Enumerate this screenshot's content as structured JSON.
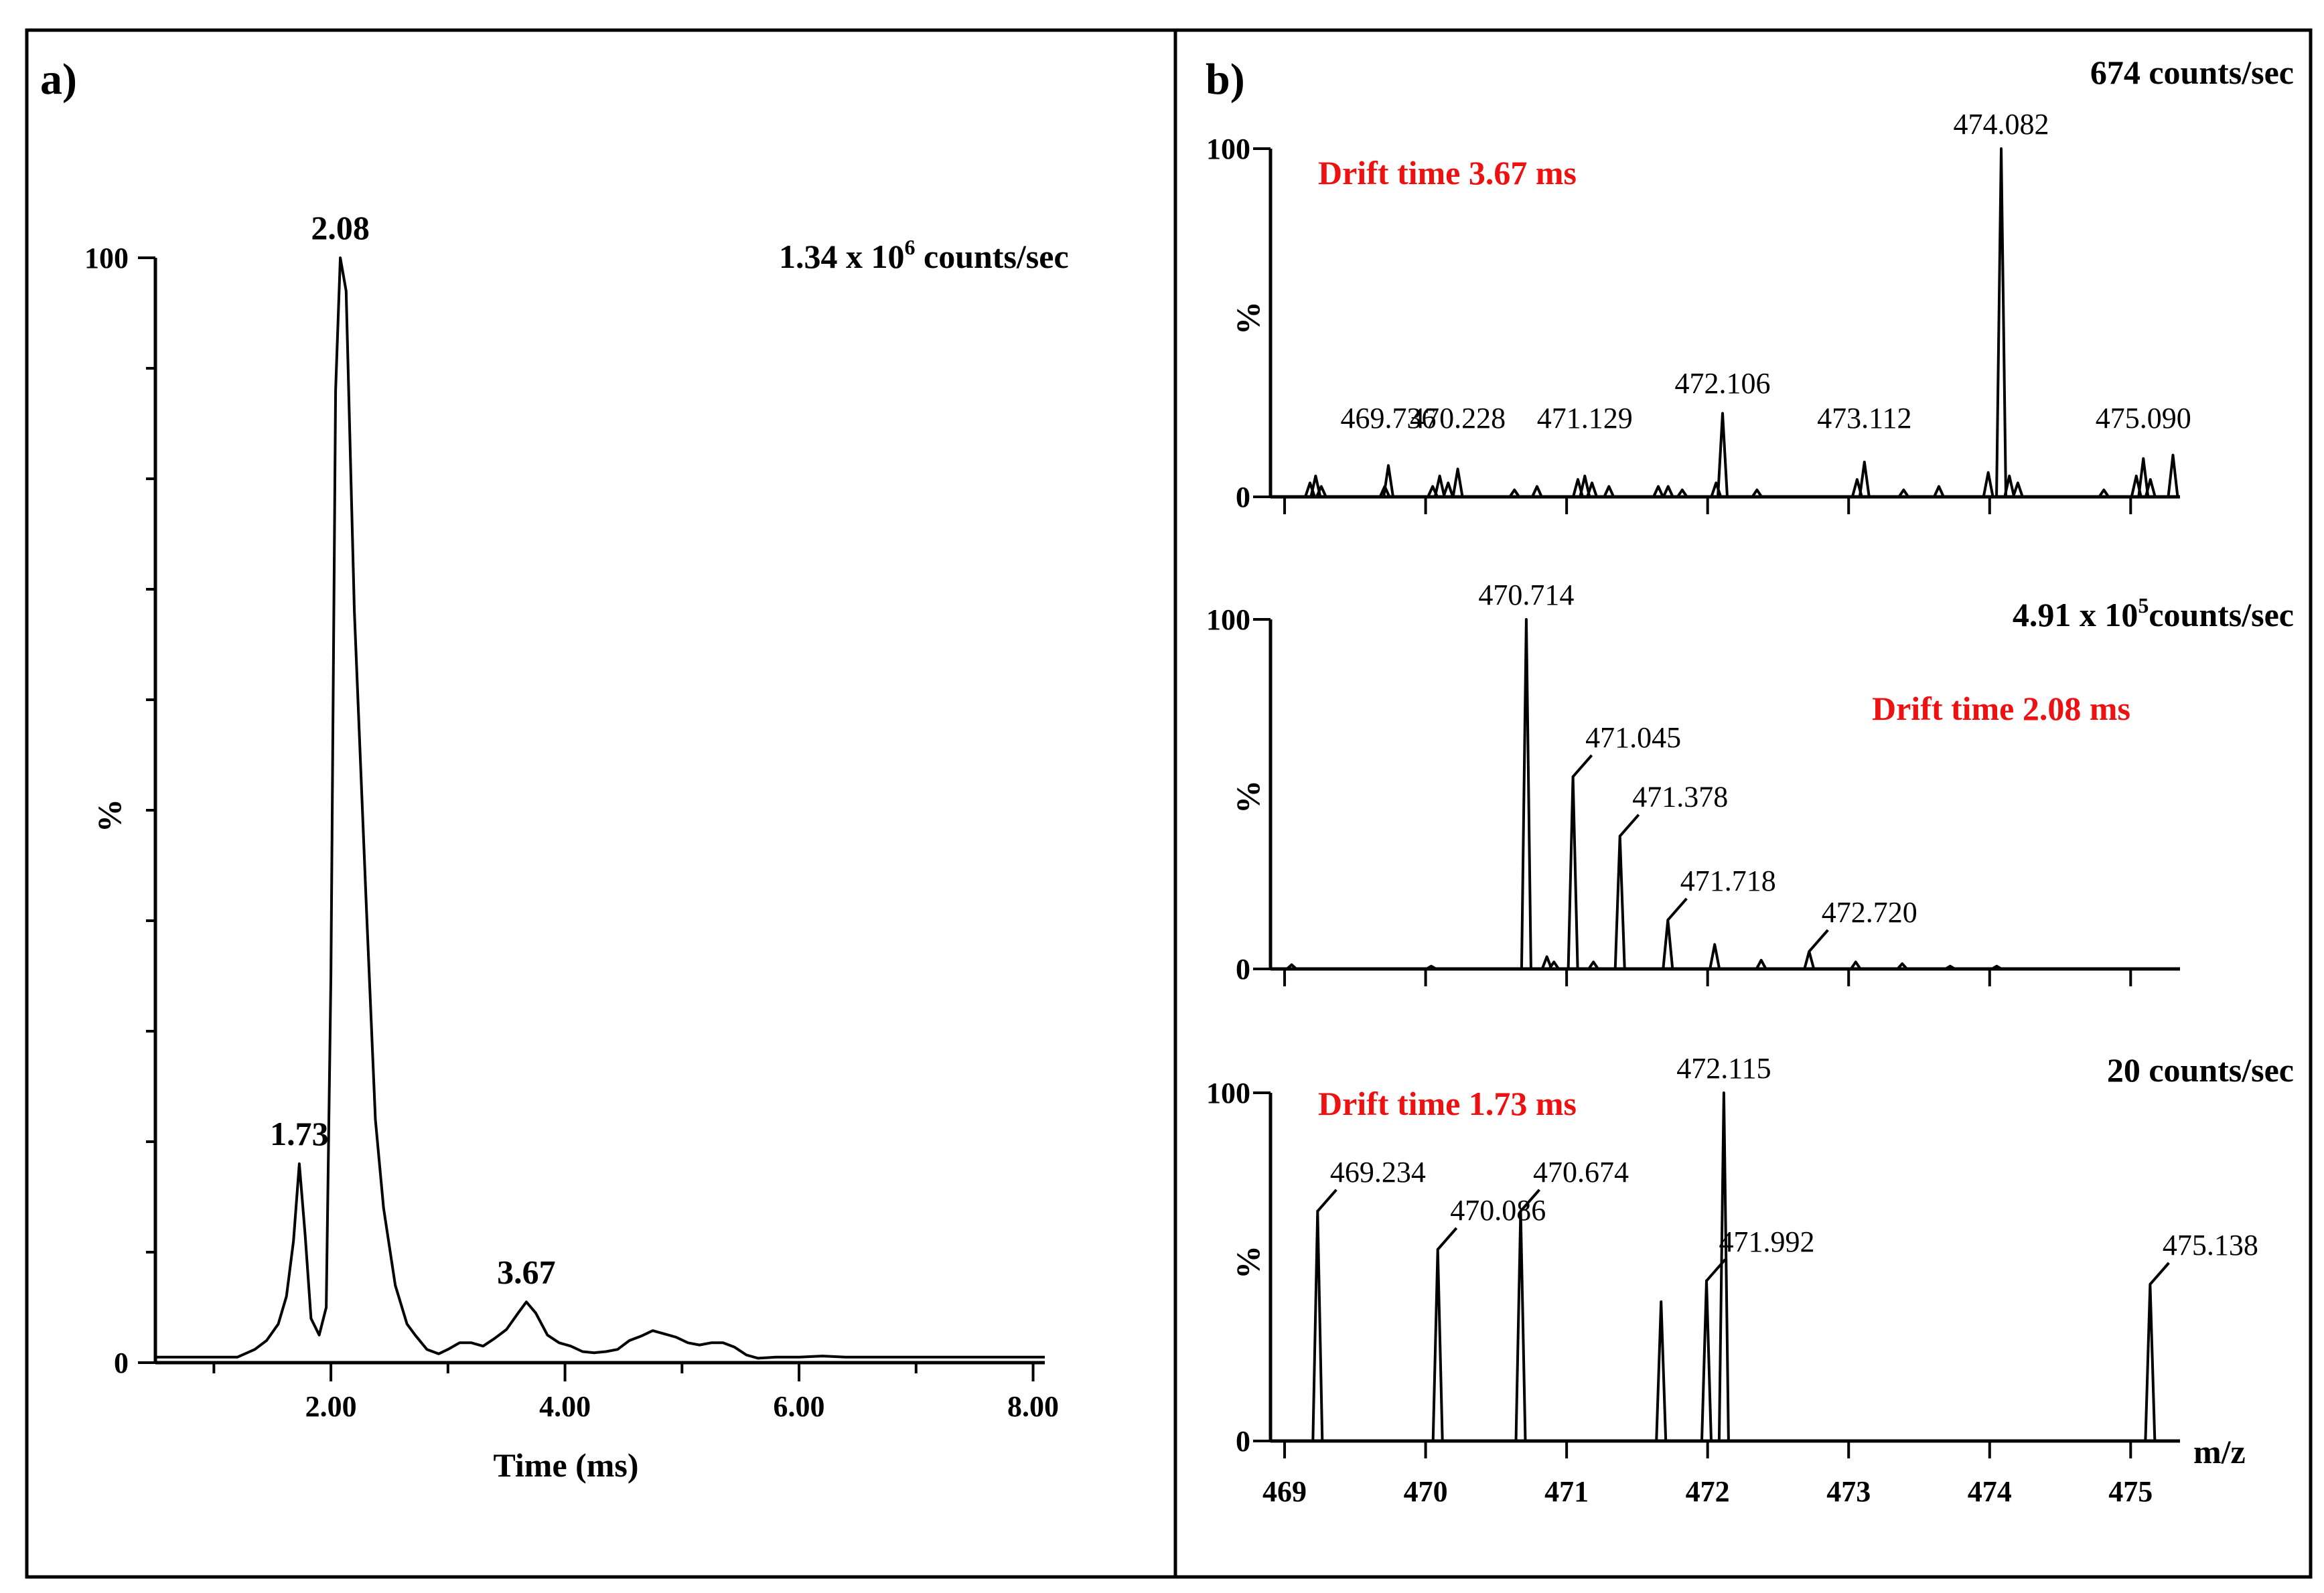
{
  "panel_labels": {
    "a": "a)",
    "b": "b)"
  },
  "chart_data": [
    {
      "type": "line",
      "panel": "a)",
      "intensity_label": "1.34 x 10",
      "intensity_exponent": "6",
      "intensity_unit": " counts/sec",
      "xlabel": "Time (ms)",
      "ylabel": "%",
      "xlim": [
        0.5,
        8.1
      ],
      "ylim": [
        0,
        100
      ],
      "xticks": [
        1,
        2,
        3,
        4,
        5,
        6,
        7,
        8
      ],
      "xtick_labels": [
        "2.00",
        "4.00",
        "6.00",
        "8.00"
      ],
      "xtick_label_values": [
        2,
        4,
        6,
        8
      ],
      "yticks": [
        0,
        10,
        20,
        30,
        40,
        50,
        60,
        70,
        80,
        90,
        100
      ],
      "ytick_labels": [
        "0",
        "100"
      ],
      "peak_labels": [
        "1.73",
        "2.08",
        "3.67"
      ],
      "peaks": [
        {
          "x": 1.73,
          "y": 18.0
        },
        {
          "x": 2.08,
          "y": 100
        },
        {
          "x": 3.67,
          "y": 5.5
        }
      ],
      "series": [
        {
          "name": "drift time profile",
          "x": [
            0.5,
            1.2,
            1.35,
            1.45,
            1.55,
            1.62,
            1.68,
            1.73,
            1.78,
            1.83,
            1.9,
            1.96,
            2.0,
            2.04,
            2.08,
            2.13,
            2.2,
            2.3,
            2.38,
            2.45,
            2.55,
            2.65,
            2.72,
            2.82,
            2.92,
            3.0,
            3.1,
            3.2,
            3.3,
            3.4,
            3.5,
            3.6,
            3.67,
            3.75,
            3.85,
            3.95,
            4.05,
            4.15,
            4.25,
            4.35,
            4.45,
            4.55,
            4.65,
            4.75,
            4.85,
            4.95,
            5.05,
            5.15,
            5.25,
            5.35,
            5.45,
            5.55,
            5.65,
            5.8,
            6.0,
            6.2,
            6.4,
            7.0,
            8.1
          ],
          "y": [
            0.5,
            0.5,
            1.2,
            2.0,
            3.5,
            6.0,
            11.0,
            18.0,
            11.5,
            4.0,
            2.5,
            5.0,
            35.0,
            88.0,
            100,
            97.0,
            68.0,
            42.0,
            22.0,
            14.0,
            7.0,
            3.5,
            2.5,
            1.2,
            0.8,
            1.2,
            1.8,
            1.8,
            1.5,
            2.2,
            3.0,
            4.5,
            5.5,
            4.5,
            2.5,
            1.8,
            1.5,
            1.0,
            0.9,
            1.0,
            1.2,
            2.0,
            2.4,
            2.9,
            2.6,
            2.3,
            1.8,
            1.6,
            1.8,
            1.8,
            1.4,
            0.7,
            0.4,
            0.5,
            0.5,
            0.6,
            0.5,
            0.5,
            0.5
          ]
        }
      ]
    },
    {
      "type": "bar",
      "panel": "b) top",
      "intensity_label": "674 counts/sec",
      "drift_label": "Drift time 3.67 ms",
      "xlabel": "m/z",
      "ylabel": "%",
      "xlim": [
        468.9,
        475.35
      ],
      "ylim": [
        0,
        100
      ],
      "ytick_labels": [
        "0",
        "100"
      ],
      "peak_labels": [
        "469.736",
        "470.228",
        "471.129",
        "472.106",
        "473.112",
        "474.082",
        "475.090"
      ],
      "labeled_peaks": [
        {
          "mz": 469.736,
          "y": 9
        },
        {
          "mz": 470.228,
          "y": 8
        },
        {
          "mz": 471.129,
          "y": 6
        },
        {
          "mz": 472.106,
          "y": 24
        },
        {
          "mz": 473.112,
          "y": 10
        },
        {
          "mz": 474.082,
          "y": 100
        },
        {
          "mz": 475.09,
          "y": 11
        }
      ],
      "minor_peaks": [
        {
          "mz": 469.18,
          "y": 4
        },
        {
          "mz": 469.22,
          "y": 6
        },
        {
          "mz": 469.26,
          "y": 3
        },
        {
          "mz": 469.71,
          "y": 3
        },
        {
          "mz": 470.05,
          "y": 3
        },
        {
          "mz": 470.1,
          "y": 6
        },
        {
          "mz": 470.16,
          "y": 4
        },
        {
          "mz": 470.63,
          "y": 2
        },
        {
          "mz": 470.79,
          "y": 3
        },
        {
          "mz": 471.08,
          "y": 5
        },
        {
          "mz": 471.18,
          "y": 4
        },
        {
          "mz": 471.3,
          "y": 3
        },
        {
          "mz": 471.65,
          "y": 3
        },
        {
          "mz": 471.72,
          "y": 3
        },
        {
          "mz": 471.82,
          "y": 2
        },
        {
          "mz": 472.06,
          "y": 4
        },
        {
          "mz": 472.35,
          "y": 2
        },
        {
          "mz": 473.06,
          "y": 5
        },
        {
          "mz": 473.39,
          "y": 2
        },
        {
          "mz": 473.64,
          "y": 3
        },
        {
          "mz": 473.99,
          "y": 7
        },
        {
          "mz": 474.14,
          "y": 6
        },
        {
          "mz": 474.2,
          "y": 4
        },
        {
          "mz": 474.81,
          "y": 2
        },
        {
          "mz": 475.04,
          "y": 6
        },
        {
          "mz": 475.14,
          "y": 5
        },
        {
          "mz": 475.3,
          "y": 12
        }
      ]
    },
    {
      "type": "bar",
      "panel": "b) middle",
      "intensity_label": "4.91 x 10",
      "intensity_exponent": "5",
      "intensity_unit": "counts/sec",
      "drift_label": "Drift time 2.08 ms",
      "xlabel": "m/z",
      "ylabel": "%",
      "xlim": [
        468.9,
        475.35
      ],
      "ylim": [
        0,
        100
      ],
      "ytick_labels": [
        "0",
        "100"
      ],
      "peak_labels": [
        "470.714",
        "471.045",
        "471.378",
        "471.718",
        "472.720"
      ],
      "labeled_peaks": [
        {
          "mz": 470.714,
          "y": 100
        },
        {
          "mz": 471.045,
          "y": 55
        },
        {
          "mz": 471.378,
          "y": 38
        },
        {
          "mz": 471.718,
          "y": 14
        },
        {
          "mz": 472.72,
          "y": 5
        }
      ],
      "minor_peaks": [
        {
          "mz": 469.05,
          "y": 1.2
        },
        {
          "mz": 470.04,
          "y": 0.8
        },
        {
          "mz": 470.86,
          "y": 3.5
        },
        {
          "mz": 470.91,
          "y": 2
        },
        {
          "mz": 471.19,
          "y": 2
        },
        {
          "mz": 472.05,
          "y": 7
        },
        {
          "mz": 472.38,
          "y": 2.5
        },
        {
          "mz": 473.05,
          "y": 2
        },
        {
          "mz": 473.38,
          "y": 1.5
        },
        {
          "mz": 473.72,
          "y": 0.8
        },
        {
          "mz": 474.05,
          "y": 0.8
        }
      ]
    },
    {
      "type": "bar",
      "panel": "b) bottom",
      "intensity_label": "20 counts/sec",
      "drift_label": "Drift time 1.73 ms",
      "xlabel": "m/z",
      "ylabel": "%",
      "xlim": [
        468.9,
        475.35
      ],
      "ylim": [
        0,
        100
      ],
      "xticks": [
        469,
        470,
        471,
        472,
        473,
        474,
        475
      ],
      "xtick_labels": [
        "469",
        "470",
        "471",
        "472",
        "473",
        "474",
        "475"
      ],
      "ytick_labels": [
        "0",
        "100"
      ],
      "peak_labels": [
        "469.234",
        "470.086",
        "470.674",
        "471.992",
        "472.115",
        "475.138"
      ],
      "labeled_peaks": [
        {
          "mz": 469.234,
          "y": 66
        },
        {
          "mz": 470.086,
          "y": 55
        },
        {
          "mz": 470.674,
          "y": 66
        },
        {
          "mz": 471.992,
          "y": 46
        },
        {
          "mz": 472.115,
          "y": 100
        },
        {
          "mz": 475.138,
          "y": 45
        }
      ],
      "minor_peaks": [
        {
          "mz": 471.67,
          "y": 40
        }
      ]
    }
  ]
}
